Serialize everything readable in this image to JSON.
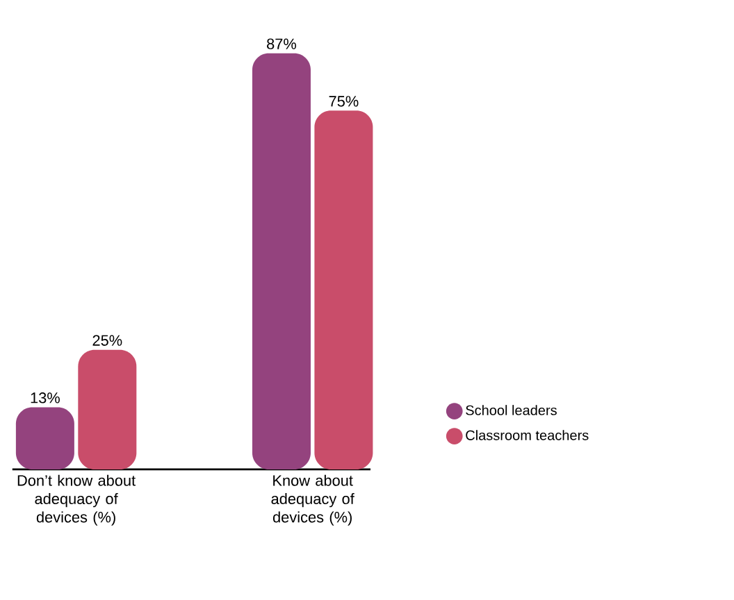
{
  "chart_data": {
    "type": "bar",
    "categories": [
      "Don’t know about adequacy of devices (%)",
      "Know about adequacy of devices (%)"
    ],
    "series": [
      {
        "name": "School leaders",
        "color": "#94437e",
        "values": [
          13,
          87
        ],
        "value_labels": [
          "13%",
          "87%"
        ]
      },
      {
        "name": "Classroom teachers",
        "color": "#c94d6a",
        "values": [
          25,
          75
        ],
        "value_labels": [
          "25%",
          "75%"
        ]
      }
    ],
    "legend": "right"
  }
}
